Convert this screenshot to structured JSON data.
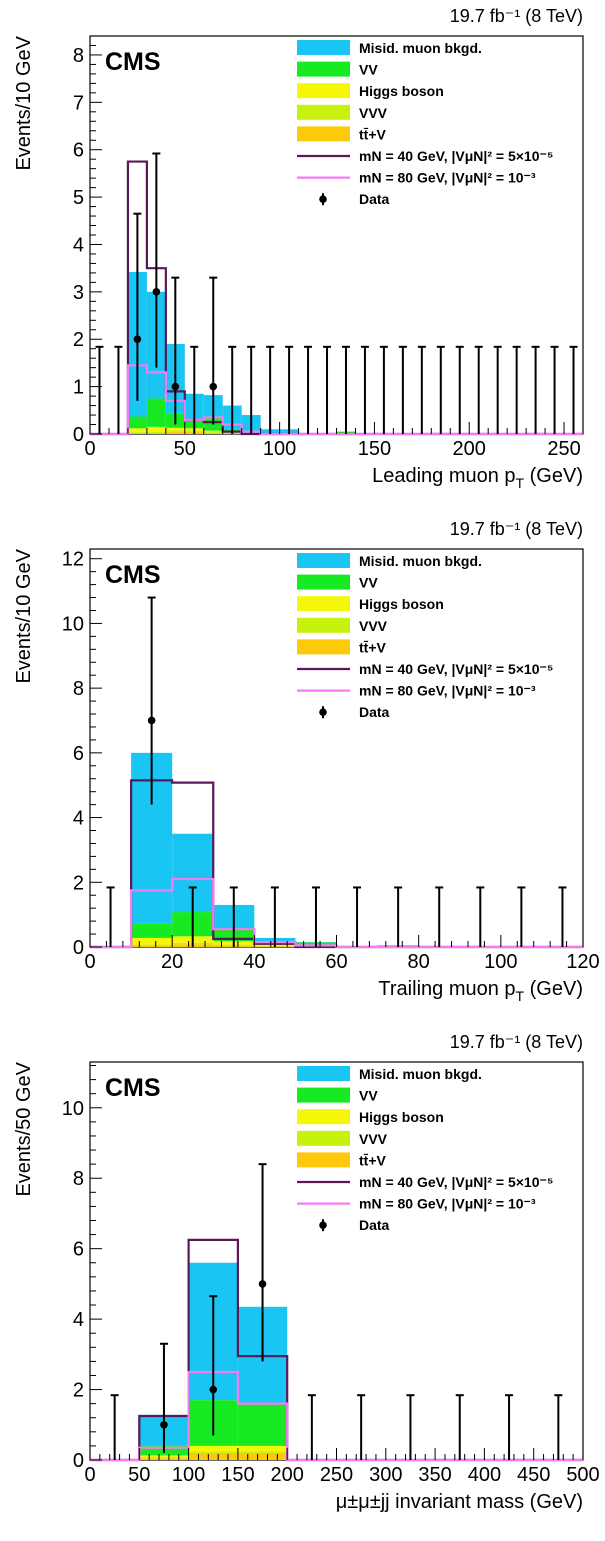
{
  "colors": {
    "misid": "#19c5f3",
    "vv": "#18ea22",
    "higgs": "#f6f609",
    "vvv": "#c6f20d",
    "ttv": "#fdc90a",
    "sig40": "#5b1858",
    "sig80": "#f57af4",
    "data": "#000000"
  },
  "legend": [
    {
      "key": "misid",
      "label": "Misid. muon bkgd.",
      "kind": "fill"
    },
    {
      "key": "vv",
      "label": "VV",
      "kind": "fill"
    },
    {
      "key": "higgs",
      "label": "Higgs boson",
      "kind": "fill"
    },
    {
      "key": "vvv",
      "label": "VVV",
      "kind": "fill"
    },
    {
      "key": "ttv",
      "label": "tt̄+V",
      "kind": "fill"
    },
    {
      "key": "sig40",
      "label": "mN = 40 GeV, |VμN|² = 5×10⁻⁵",
      "kind": "line"
    },
    {
      "key": "sig80",
      "label": "mN = 80 GeV, |VμN|² = 10⁻³",
      "kind": "line"
    },
    {
      "key": "data",
      "label": "Data",
      "kind": "marker"
    }
  ],
  "chart_data": [
    {
      "type": "bar",
      "cms_label": "CMS",
      "lumi_label": "19.7 fb⁻¹ (8 TeV)",
      "xlabel": "Leading muon p_T (GeV)",
      "ylabel": "Events/10 GeV",
      "xlim": [
        0,
        260
      ],
      "ylim": [
        0,
        8.4
      ],
      "xticks": [
        0,
        50,
        100,
        150,
        200,
        250
      ],
      "yticks": [
        0,
        1,
        2,
        3,
        4,
        5,
        6,
        7,
        8
      ],
      "bin_edges": [
        0,
        10,
        20,
        30,
        40,
        50,
        60,
        70,
        80,
        90,
        100,
        110,
        120,
        130,
        140,
        150,
        160,
        170,
        180,
        190,
        200,
        210,
        220,
        230,
        240,
        250,
        260
      ],
      "stack": {
        "ttv": [
          0,
          0,
          0.02,
          0.02,
          0.05,
          0.05,
          0.02,
          0.02,
          0,
          0,
          0,
          0,
          0,
          0,
          0,
          0,
          0,
          0,
          0,
          0,
          0,
          0,
          0,
          0,
          0,
          0
        ],
        "vvv": [
          0,
          0,
          0.02,
          0.03,
          0.03,
          0.02,
          0.02,
          0.01,
          0,
          0,
          0,
          0,
          0,
          0,
          0,
          0,
          0,
          0,
          0,
          0,
          0,
          0,
          0,
          0,
          0,
          0
        ],
        "higgs": [
          0,
          0,
          0.08,
          0.1,
          0.05,
          0.05,
          0.03,
          0.02,
          0,
          0,
          0,
          0,
          0,
          0,
          0,
          0,
          0,
          0,
          0,
          0,
          0,
          0,
          0,
          0,
          0,
          0
        ],
        "vv": [
          0,
          0,
          0.25,
          0.6,
          0.3,
          0.2,
          0.3,
          0.05,
          0,
          0.02,
          0,
          0,
          0,
          0.05,
          0,
          0,
          0,
          0,
          0,
          0,
          0,
          0,
          0,
          0,
          0,
          0
        ],
        "misid": [
          0,
          0,
          3.05,
          2.25,
          1.47,
          0.53,
          0.45,
          0.5,
          0.4,
          0.08,
          0.1,
          0,
          0,
          0,
          0,
          0,
          0,
          0,
          0,
          0,
          0,
          0,
          0,
          0,
          0,
          0
        ]
      },
      "signals": {
        "sig40": [
          0,
          0,
          5.75,
          3.5,
          0.9,
          0.3,
          0.25,
          0.05,
          0,
          0,
          0,
          0,
          0,
          0,
          0,
          0,
          0,
          0,
          0,
          0,
          0,
          0,
          0,
          0,
          0,
          0
        ],
        "sig80": [
          0,
          0,
          1.45,
          1.3,
          0.7,
          0.3,
          0.35,
          0.2,
          0.05,
          0,
          0,
          0,
          0,
          0,
          0,
          0,
          0,
          0,
          0,
          0,
          0,
          0,
          0,
          0,
          0,
          0
        ]
      },
      "data": {
        "x": [
          5,
          15,
          25,
          35,
          45,
          55,
          65,
          75,
          85,
          95,
          105,
          115,
          125,
          135,
          145,
          155,
          165,
          175,
          185,
          195,
          205,
          215,
          225,
          235,
          245,
          255
        ],
        "y": [
          0,
          0,
          2,
          3,
          1,
          0,
          1,
          0,
          0,
          0,
          0,
          0,
          0,
          0,
          0,
          0,
          0,
          0,
          0,
          0,
          0,
          0,
          0,
          0,
          0,
          0
        ],
        "err_low": [
          0,
          0,
          1.3,
          1.6,
          0.8,
          0,
          0.8,
          0,
          0,
          0,
          0,
          0,
          0,
          0,
          0,
          0,
          0,
          0,
          0,
          0,
          0,
          0,
          0,
          0,
          0,
          0
        ],
        "err_high": [
          1.84,
          1.84,
          2.65,
          2.92,
          2.3,
          1.84,
          2.3,
          1.84,
          1.84,
          1.84,
          1.84,
          1.84,
          1.84,
          1.84,
          1.84,
          1.84,
          1.84,
          1.84,
          1.84,
          1.84,
          1.84,
          1.84,
          1.84,
          1.84,
          1.84,
          1.84
        ]
      }
    },
    {
      "type": "bar",
      "cms_label": "CMS",
      "lumi_label": "19.7 fb⁻¹ (8 TeV)",
      "xlabel": "Trailing muon p_T (GeV)",
      "ylabel": "Events/10 GeV",
      "xlim": [
        0,
        120
      ],
      "ylim": [
        0,
        12.3
      ],
      "xticks": [
        0,
        20,
        40,
        60,
        80,
        100,
        120
      ],
      "yticks": [
        0,
        2,
        4,
        6,
        8,
        10,
        12
      ],
      "bin_edges": [
        0,
        10,
        20,
        30,
        40,
        50,
        60,
        70,
        80,
        90,
        100,
        110,
        120
      ],
      "stack": {
        "ttv": [
          0,
          0.05,
          0.08,
          0.05,
          0.02,
          0.01,
          0,
          0,
          0,
          0,
          0,
          0
        ],
        "vvv": [
          0,
          0.03,
          0.05,
          0.03,
          0.01,
          0.01,
          0,
          0,
          0,
          0,
          0,
          0
        ],
        "higgs": [
          0,
          0.2,
          0.2,
          0.1,
          0.05,
          0.02,
          0,
          0,
          0,
          0,
          0,
          0
        ],
        "vv": [
          0,
          0.45,
          0.75,
          0.35,
          0.1,
          0.1,
          0,
          0.05,
          0,
          0,
          0,
          0
        ],
        "misid": [
          0,
          5.27,
          2.42,
          0.77,
          0.1,
          0.01,
          0,
          0,
          0,
          0,
          0,
          0
        ]
      },
      "signals": {
        "sig40": [
          0,
          5.15,
          5.08,
          0.25,
          0.1,
          0,
          0,
          0,
          0,
          0,
          0,
          0
        ],
        "sig80": [
          0,
          1.75,
          2.1,
          0.55,
          0.15,
          0.05,
          0,
          0,
          0,
          0,
          0,
          0
        ]
      },
      "data": {
        "x": [
          5,
          15,
          25,
          35,
          45,
          55,
          65,
          75,
          85,
          95,
          105,
          115
        ],
        "y": [
          0,
          7,
          0,
          0,
          0,
          0,
          0,
          0,
          0,
          0,
          0,
          0
        ],
        "err_low": [
          0,
          2.6,
          0,
          0,
          0,
          0,
          0,
          0,
          0,
          0,
          0,
          0
        ],
        "err_high": [
          1.84,
          3.8,
          1.84,
          1.84,
          1.84,
          1.84,
          1.84,
          1.84,
          1.84,
          1.84,
          1.84,
          1.84
        ]
      }
    },
    {
      "type": "bar",
      "cms_label": "CMS",
      "lumi_label": "19.7 fb⁻¹ (8 TeV)",
      "xlabel": "μ±μ±jj invariant mass (GeV)",
      "ylabel": "Events/50 GeV",
      "xlim": [
        0,
        500
      ],
      "ylim": [
        0,
        11.3
      ],
      "xticks": [
        0,
        50,
        100,
        150,
        200,
        250,
        300,
        350,
        400,
        450,
        500
      ],
      "yticks": [
        0,
        2,
        4,
        6,
        8,
        10
      ],
      "bin_edges": [
        0,
        50,
        100,
        150,
        200,
        250,
        300,
        350,
        400,
        450,
        500
      ],
      "stack": {
        "ttv": [
          0,
          0.05,
          0.2,
          0.2,
          0,
          0,
          0,
          0,
          0,
          0
        ],
        "vvv": [
          0,
          0.03,
          0.05,
          0.05,
          0,
          0,
          0,
          0,
          0,
          0
        ],
        "higgs": [
          0,
          0.05,
          0.15,
          0.15,
          0,
          0,
          0,
          0,
          0,
          0
        ],
        "vv": [
          0,
          0.27,
          1.3,
          1.2,
          0,
          0,
          0,
          0,
          0,
          0
        ],
        "misid": [
          0,
          0.88,
          3.9,
          2.75,
          0,
          0,
          0,
          0,
          0,
          0
        ]
      },
      "signals": {
        "sig40": [
          0,
          1.25,
          6.25,
          2.95,
          0,
          0,
          0,
          0,
          0,
          0
        ],
        "sig80": [
          0,
          0.35,
          2.5,
          1.6,
          0,
          0,
          0,
          0,
          0,
          0
        ]
      },
      "data": {
        "x": [
          25,
          75,
          125,
          175,
          225,
          275,
          325,
          375,
          425,
          475
        ],
        "y": [
          0,
          1,
          2,
          5,
          0,
          0,
          0,
          0,
          0,
          0
        ],
        "err_low": [
          0,
          0.8,
          1.3,
          2.2,
          0,
          0,
          0,
          0,
          0,
          0
        ],
        "err_high": [
          1.84,
          2.3,
          2.65,
          3.4,
          1.84,
          1.84,
          1.84,
          1.84,
          1.84,
          1.84
        ]
      }
    }
  ]
}
